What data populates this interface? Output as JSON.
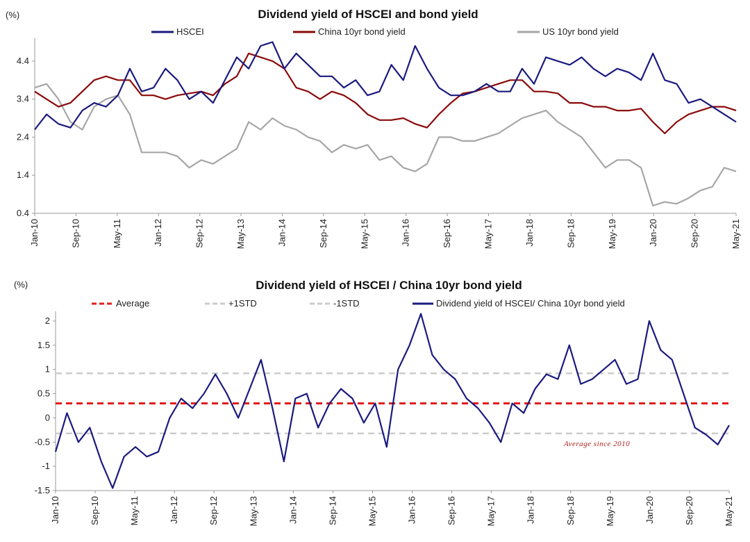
{
  "chart_data": [
    {
      "type": "line",
      "title": "Dividend yield of HSCEI and bond yield",
      "unit": "(%)",
      "ylim": [
        0.4,
        5.0
      ],
      "yticks": [
        "0.4",
        "1.4",
        "2.4",
        "3.4",
        "4.4"
      ],
      "xticks": [
        "Jan-10",
        "Sep-10",
        "May-11",
        "Jan-12",
        "Sep-12",
        "May-13",
        "Jan-14",
        "Sep-14",
        "May-15",
        "Jan-16",
        "Sep-16",
        "May-17",
        "Jan-18",
        "Sep-18",
        "May-19",
        "Jan-20",
        "Sep-20",
        "May-21"
      ],
      "legend_position": "top",
      "grid": false,
      "series": [
        {
          "name": "HSCEI",
          "color": "#1a1a7e",
          "values": [
            2.6,
            3.0,
            2.75,
            2.65,
            3.1,
            3.3,
            3.2,
            3.5,
            4.2,
            3.6,
            3.7,
            4.2,
            3.9,
            3.4,
            3.6,
            3.3,
            3.9,
            4.5,
            4.2,
            4.8,
            4.9,
            4.2,
            4.6,
            4.3,
            4.0,
            4.0,
            3.7,
            3.9,
            3.5,
            3.6,
            4.3,
            3.9,
            4.8,
            4.2,
            3.7,
            3.5,
            3.5,
            3.6,
            3.8,
            3.6,
            3.6,
            4.2,
            3.8,
            4.5,
            4.4,
            4.3,
            4.5,
            4.2,
            4.0,
            4.2,
            4.1,
            3.9,
            4.6,
            3.9,
            3.8,
            3.3,
            3.4,
            3.2,
            3.0,
            2.8
          ]
        },
        {
          "name": "China 10yr bond yield",
          "color": "#8b0a0a",
          "values": [
            3.6,
            3.4,
            3.2,
            3.3,
            3.6,
            3.9,
            4.0,
            3.9,
            3.9,
            3.5,
            3.5,
            3.4,
            3.5,
            3.55,
            3.6,
            3.5,
            3.8,
            4.0,
            4.6,
            4.5,
            4.4,
            4.2,
            3.7,
            3.6,
            3.4,
            3.6,
            3.5,
            3.3,
            3.0,
            2.85,
            2.85,
            2.9,
            2.75,
            2.65,
            3.0,
            3.3,
            3.55,
            3.6,
            3.7,
            3.8,
            3.9,
            3.9,
            3.6,
            3.6,
            3.55,
            3.3,
            3.3,
            3.2,
            3.2,
            3.1,
            3.1,
            3.15,
            2.8,
            2.5,
            2.8,
            3.0,
            3.1,
            3.2,
            3.2,
            3.1
          ]
        },
        {
          "name": "US 10yr bond yield",
          "color": "#a6a6a6",
          "values": [
            3.7,
            3.8,
            3.4,
            2.8,
            2.6,
            3.2,
            3.4,
            3.5,
            3.0,
            2.0,
            2.0,
            2.0,
            1.9,
            1.6,
            1.8,
            1.7,
            1.9,
            2.1,
            2.8,
            2.6,
            2.9,
            2.7,
            2.6,
            2.4,
            2.3,
            2.0,
            2.2,
            2.1,
            2.2,
            1.8,
            1.9,
            1.6,
            1.5,
            1.7,
            2.4,
            2.4,
            2.3,
            2.3,
            2.4,
            2.5,
            2.7,
            2.9,
            3.0,
            3.1,
            2.8,
            2.6,
            2.4,
            2.0,
            1.6,
            1.8,
            1.8,
            1.6,
            0.6,
            0.7,
            0.65,
            0.8,
            1.0,
            1.1,
            1.6,
            1.5
          ]
        }
      ]
    },
    {
      "type": "line",
      "title": "Dividend yield of HSCEI / China 10yr bond yield",
      "unit": "(%)",
      "ylim": [
        -1.5,
        2.2
      ],
      "yticks": [
        "-1.5",
        "-1",
        "-0.5",
        "0",
        "0.5",
        "1",
        "1.5",
        "2"
      ],
      "xticks": [
        "Jan-10",
        "Sep-10",
        "May-11",
        "Jan-12",
        "Sep-12",
        "May-13",
        "Jan-14",
        "Sep-14",
        "May-15",
        "Jan-16",
        "Sep-16",
        "May-17",
        "Jan-18",
        "Sep-18",
        "May-19",
        "Jan-20",
        "Sep-20",
        "May-21"
      ],
      "legend_position": "top",
      "grid": false,
      "annotation": "Average since 2010",
      "reference_lines": [
        {
          "name": "Average",
          "value": 0.3,
          "color": "#e01e1e",
          "style": "dashed"
        },
        {
          "name": "+1STD",
          "value": 0.92,
          "color": "#cccccc",
          "style": "dashed"
        },
        {
          "name": "-1STD",
          "value": -0.32,
          "color": "#cccccc",
          "style": "dashed"
        }
      ],
      "series": [
        {
          "name": "Dividend yield of HSCEI/ China 10yr bond yield",
          "color": "#1a1a7e",
          "values": [
            -0.7,
            0.1,
            -0.5,
            -0.2,
            -0.9,
            -1.45,
            -0.8,
            -0.6,
            -0.8,
            -0.7,
            0.0,
            0.4,
            0.2,
            0.5,
            0.9,
            0.5,
            0.0,
            0.6,
            1.2,
            0.2,
            -0.9,
            0.4,
            0.5,
            -0.2,
            0.3,
            0.6,
            0.4,
            -0.1,
            0.3,
            -0.6,
            1.0,
            1.5,
            2.15,
            1.3,
            1.0,
            0.8,
            0.4,
            0.2,
            -0.1,
            -0.5,
            0.3,
            0.1,
            0.6,
            0.9,
            0.8,
            1.5,
            0.7,
            0.8,
            1.0,
            1.2,
            0.7,
            0.8,
            2.0,
            1.4,
            1.2,
            0.5,
            -0.2,
            -0.35,
            -0.55,
            -0.15
          ]
        }
      ]
    }
  ]
}
